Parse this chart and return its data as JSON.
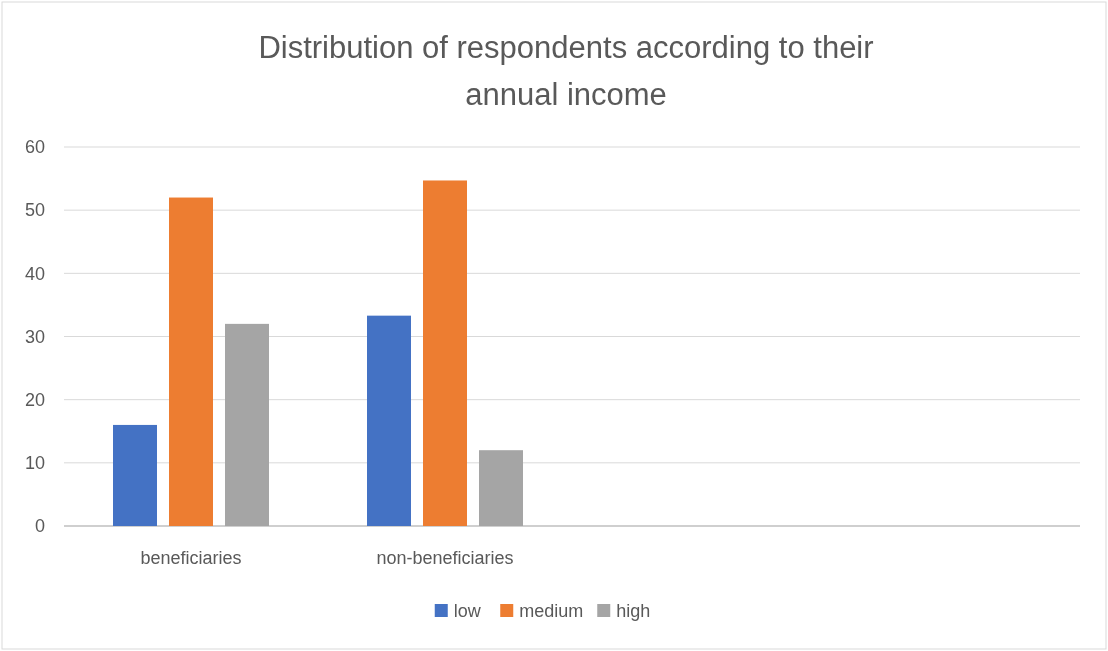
{
  "chart_data": {
    "type": "bar",
    "title": "Distribution of respondents according to their annual income",
    "categories": [
      "beneficiaries",
      "non-beneficiaries",
      null,
      null
    ],
    "series": [
      {
        "name": "low",
        "color": "#4472c4",
        "values": [
          16,
          33.3,
          null,
          null
        ]
      },
      {
        "name": "medium",
        "color": "#ed7d31",
        "values": [
          52,
          54.7,
          null,
          null
        ]
      },
      {
        "name": "high",
        "color": "#a5a5a5",
        "values": [
          32,
          12,
          null,
          null
        ]
      }
    ],
    "ylim": [
      0,
      60
    ],
    "yticks": [
      0,
      10,
      20,
      30,
      40,
      50,
      60
    ],
    "grid": "y",
    "legend": "bottom"
  }
}
